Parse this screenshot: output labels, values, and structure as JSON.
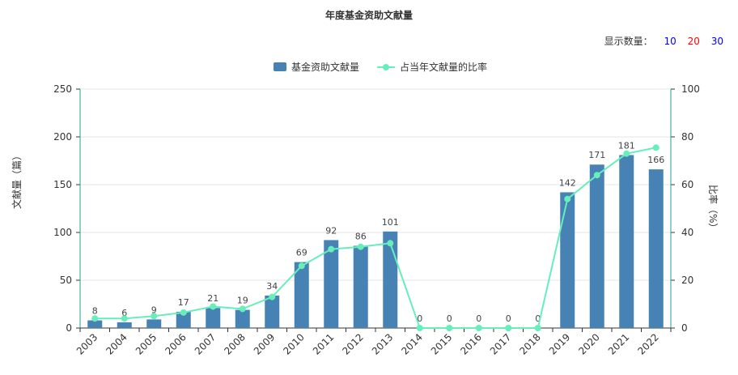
{
  "chart_data": {
    "type": "bar",
    "title": "年度基金资助文献量",
    "categories": [
      "2003",
      "2004",
      "2005",
      "2006",
      "2007",
      "2008",
      "2009",
      "2010",
      "2011",
      "2012",
      "2013",
      "2014",
      "2015",
      "2016",
      "2017",
      "2018",
      "2019",
      "2020",
      "2021",
      "2022"
    ],
    "series": [
      {
        "name": "基金资助文献量",
        "type": "bar",
        "axis": "left",
        "color": "#4682b4",
        "values": [
          8,
          6,
          9,
          17,
          21,
          19,
          34,
          69,
          92,
          86,
          101,
          0,
          0,
          0,
          0,
          0,
          142,
          171,
          181,
          166
        ]
      },
      {
        "name": "占当年文献量的比率",
        "type": "line",
        "axis": "right",
        "color": "#66eebb",
        "values": [
          4,
          4,
          5,
          6.5,
          9,
          8,
          13,
          26,
          33,
          34,
          35.5,
          0,
          0,
          0,
          0,
          0,
          54,
          64,
          73,
          75.5
        ]
      }
    ],
    "ylabel": "文献量（篇）",
    "ylim": [
      0,
      250
    ],
    "yticks": [
      0,
      50,
      100,
      150,
      200,
      250
    ],
    "y2label": "比率（%）",
    "y2lim": [
      0,
      100
    ],
    "y2ticks": [
      0,
      20,
      40,
      60,
      80,
      100
    ],
    "grid": true,
    "legend_position": "top-center"
  },
  "display_count": {
    "label": "显示数量：",
    "options": [
      {
        "label": "10",
        "color": "#0000ff"
      },
      {
        "label": "20",
        "color": "#ff0000"
      },
      {
        "label": "30",
        "color": "#0000ff"
      }
    ]
  }
}
